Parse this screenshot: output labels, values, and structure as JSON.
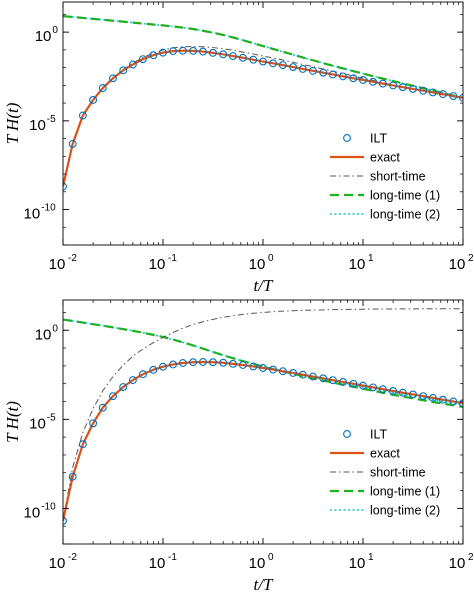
{
  "chart_data": [
    {
      "type": "line",
      "xscale": "log",
      "yscale": "log",
      "xlim": [
        0.01,
        100
      ],
      "ylim": [
        1e-12,
        50
      ],
      "xlabel": "t/T",
      "ylabel": "T H(t)",
      "grid": false,
      "legend_position": "bottom-right",
      "x_ticks": [
        {
          "base": "10",
          "exp": "-2",
          "value": 0.01
        },
        {
          "base": "10",
          "exp": "-1",
          "value": 0.1
        },
        {
          "base": "10",
          "exp": "0",
          "value": 1
        },
        {
          "base": "10",
          "exp": "1",
          "value": 10
        },
        {
          "base": "10",
          "exp": "2",
          "value": 100
        }
      ],
      "y_ticks": [
        {
          "base": "10",
          "exp": "0",
          "value": 1
        },
        {
          "base": "10",
          "exp": "-5",
          "value": 1e-05
        },
        {
          "base": "10",
          "exp": "-10",
          "value": 1e-10
        }
      ],
      "series": [
        {
          "name": "ILT",
          "style": "markers",
          "color": "#0072BD",
          "x": [
            0.01,
            0.0125,
            0.0158,
            0.02,
            0.025,
            0.0316,
            0.04,
            0.05,
            0.063,
            0.08,
            0.1,
            0.126,
            0.158,
            0.2,
            0.251,
            0.316,
            0.4,
            0.5,
            0.63,
            0.8,
            1,
            1.26,
            1.58,
            2,
            2.5,
            3.16,
            4,
            5,
            6.3,
            8,
            10,
            12.6,
            15.8,
            20,
            25,
            31.6,
            40,
            50,
            63,
            80,
            100
          ],
          "y": [
            2e-09,
            5e-07,
            2e-05,
            0.00015,
            0.0007,
            0.0025,
            0.007,
            0.015,
            0.03,
            0.05,
            0.07,
            0.085,
            0.09,
            0.088,
            0.08,
            0.068,
            0.056,
            0.045,
            0.036,
            0.028,
            0.022,
            0.0175,
            0.0138,
            0.0108,
            0.0084,
            0.0066,
            0.0052,
            0.0041,
            0.0032,
            0.0025,
            0.002,
            0.00158,
            0.00125,
            0.00099,
            0.00079,
            0.00063,
            0.0005,
            0.0004,
            0.00032,
            0.00025,
            0.0002
          ]
        },
        {
          "name": "exact",
          "style": "solid",
          "color": "#D95319",
          "x": [
            0.01,
            0.0125,
            0.0158,
            0.02,
            0.025,
            0.0316,
            0.04,
            0.05,
            0.063,
            0.08,
            0.1,
            0.126,
            0.158,
            0.2,
            0.251,
            0.316,
            0.4,
            0.5,
            0.63,
            0.8,
            1,
            1.26,
            1.58,
            2,
            2.5,
            3.16,
            4,
            5,
            6.3,
            8,
            10,
            12.6,
            15.8,
            20,
            25,
            31.6,
            40,
            50,
            63,
            80,
            100
          ],
          "y": [
            2e-09,
            5e-07,
            2e-05,
            0.00015,
            0.0007,
            0.0025,
            0.007,
            0.015,
            0.03,
            0.05,
            0.07,
            0.085,
            0.09,
            0.088,
            0.08,
            0.068,
            0.056,
            0.045,
            0.036,
            0.028,
            0.022,
            0.0175,
            0.0138,
            0.0108,
            0.0084,
            0.0066,
            0.0052,
            0.0041,
            0.0032,
            0.0025,
            0.002,
            0.00158,
            0.00125,
            0.00099,
            0.00079,
            0.00063,
            0.0005,
            0.0004,
            0.00032,
            0.00025,
            0.0002
          ]
        },
        {
          "name": "short-time",
          "style": "dashdot",
          "color": "#555555",
          "x": [
            0.01,
            0.0125,
            0.0158,
            0.02,
            0.025,
            0.0316,
            0.04,
            0.05,
            0.063,
            0.08,
            0.1,
            0.126,
            0.158,
            0.2,
            0.251,
            0.316,
            0.4,
            0.5,
            0.63,
            0.8,
            1,
            1.26,
            1.58,
            2,
            2.5,
            3.16,
            4,
            5,
            6.3,
            8,
            10,
            12.6,
            15.8,
            20,
            25,
            31.6,
            40,
            50,
            63,
            80,
            100
          ],
          "y": [
            2e-09,
            5e-07,
            2e-05,
            0.00016,
            0.00075,
            0.0027,
            0.0078,
            0.018,
            0.037,
            0.065,
            0.1,
            0.13,
            0.15,
            0.155,
            0.15,
            0.135,
            0.115,
            0.095,
            0.075,
            0.058,
            0.045,
            0.035,
            0.027,
            0.02,
            0.015,
            0.0112,
            0.0083,
            0.0062,
            0.0046,
            0.0034,
            0.0025,
            0.0019,
            0.0014,
            0.00105,
            0.0008,
            0.00062,
            0.00048,
            0.00037,
            0.00029,
            0.00023,
            0.00018
          ]
        },
        {
          "name": "long-time (1)",
          "style": "dashed",
          "color": "#1FAF1F",
          "x": [
            0.01,
            0.0126,
            0.0158,
            0.02,
            0.0251,
            0.0316,
            0.0398,
            0.0501,
            0.0631,
            0.0794,
            0.1,
            0.126,
            0.158,
            0.2,
            0.251,
            0.316,
            0.398,
            0.501,
            0.631,
            0.794,
            1,
            1.26,
            1.58,
            2,
            2.51,
            3.16,
            3.98,
            5.01,
            6.31,
            7.94,
            10,
            12.6,
            15.8,
            20,
            25.1,
            31.6,
            39.8,
            50.1,
            63.1,
            79.4,
            100
          ],
          "y": [
            8,
            7.1,
            6.3,
            5.6,
            5,
            4.4,
            3.9,
            3.45,
            3.05,
            2.7,
            2.4,
            2.1,
            1.8,
            1.5,
            1.2,
            0.93,
            0.7,
            0.5,
            0.35,
            0.24,
            0.165,
            0.113,
            0.078,
            0.054,
            0.037,
            0.026,
            0.018,
            0.0127,
            0.009,
            0.0064,
            0.0046,
            0.0033,
            0.0024,
            0.00174,
            0.00128,
            0.00094,
            0.00069,
            0.00051,
            0.00037,
            0.00027,
            0.0002
          ]
        },
        {
          "name": "long-time (2)",
          "style": "dotted",
          "color": "#00CFCF",
          "x": [
            0.01,
            0.0126,
            0.0158,
            0.02,
            0.0251,
            0.0316,
            0.0398,
            0.0501,
            0.0631,
            0.0794,
            0.1,
            0.126,
            0.158,
            0.2,
            0.251,
            0.316,
            0.398,
            0.501,
            0.631,
            0.794,
            1,
            1.26,
            1.58,
            2,
            2.51,
            3.16,
            3.98,
            5.01,
            6.31,
            7.94,
            10,
            12.6,
            15.8,
            20,
            25.1,
            31.6,
            39.8,
            50.1,
            63.1,
            79.4,
            100
          ],
          "y": [
            8,
            7.1,
            6.3,
            5.6,
            5,
            4.4,
            3.9,
            3.45,
            3.05,
            2.7,
            2.4,
            2.1,
            1.8,
            1.5,
            1.2,
            0.93,
            0.7,
            0.5,
            0.35,
            0.24,
            0.165,
            0.113,
            0.078,
            0.054,
            0.037,
            0.026,
            0.018,
            0.0127,
            0.009,
            0.0064,
            0.0046,
            0.0033,
            0.0024,
            0.00174,
            0.00128,
            0.00094,
            0.00069,
            0.00051,
            0.00037,
            0.00027,
            0.0002
          ]
        }
      ]
    },
    {
      "type": "line",
      "xscale": "log",
      "yscale": "log",
      "xlim": [
        0.01,
        100
      ],
      "ylim": [
        1e-12,
        50
      ],
      "xlabel": "t/T",
      "ylabel": "T H(t)",
      "grid": false,
      "legend_position": "bottom-right",
      "x_ticks": [
        {
          "base": "10",
          "exp": "-2",
          "value": 0.01
        },
        {
          "base": "10",
          "exp": "-1",
          "value": 0.1
        },
        {
          "base": "10",
          "exp": "0",
          "value": 1
        },
        {
          "base": "10",
          "exp": "1",
          "value": 10
        },
        {
          "base": "10",
          "exp": "2",
          "value": 100
        }
      ],
      "y_ticks": [
        {
          "base": "10",
          "exp": "0",
          "value": 1
        },
        {
          "base": "10",
          "exp": "-5",
          "value": 1e-05
        },
        {
          "base": "10",
          "exp": "-10",
          "value": 1e-10
        }
      ],
      "series": [
        {
          "name": "ILT",
          "style": "markers",
          "color": "#0072BD",
          "x": [
            0.01,
            0.0125,
            0.0158,
            0.02,
            0.025,
            0.0316,
            0.04,
            0.05,
            0.063,
            0.08,
            0.1,
            0.126,
            0.158,
            0.2,
            0.251,
            0.316,
            0.4,
            0.5,
            0.63,
            0.8,
            1,
            1.26,
            1.58,
            2,
            2.5,
            3.16,
            4,
            5,
            6.3,
            8,
            10,
            12.6,
            15.8,
            20,
            25,
            31.6,
            40,
            50,
            63,
            80,
            100
          ],
          "y": [
            2e-11,
            6e-09,
            4e-07,
            6e-06,
            4.5e-05,
            0.0002,
            0.00065,
            0.0016,
            0.0034,
            0.006,
            0.009,
            0.012,
            0.0145,
            0.016,
            0.0165,
            0.016,
            0.015,
            0.013,
            0.0112,
            0.0093,
            0.0076,
            0.0062,
            0.005,
            0.004,
            0.0032,
            0.0025,
            0.002,
            0.00158,
            0.00125,
            0.00099,
            0.00078,
            0.00062,
            0.00049,
            0.00039,
            0.00031,
            0.00025,
            0.0002,
            0.00016,
            0.000126,
            0.0001,
            8e-05
          ]
        },
        {
          "name": "exact",
          "style": "solid",
          "color": "#D95319",
          "x": [
            0.01,
            0.0125,
            0.0158,
            0.02,
            0.025,
            0.0316,
            0.04,
            0.05,
            0.063,
            0.08,
            0.1,
            0.126,
            0.158,
            0.2,
            0.251,
            0.316,
            0.4,
            0.5,
            0.63,
            0.8,
            1,
            1.26,
            1.58,
            2,
            2.5,
            3.16,
            4,
            5,
            6.3,
            8,
            10,
            12.6,
            15.8,
            20,
            25,
            31.6,
            40,
            50,
            63,
            80,
            100
          ],
          "y": [
            2e-11,
            6e-09,
            4e-07,
            6e-06,
            4.5e-05,
            0.0002,
            0.00065,
            0.0016,
            0.0034,
            0.006,
            0.009,
            0.012,
            0.0145,
            0.016,
            0.0165,
            0.016,
            0.015,
            0.013,
            0.0112,
            0.0093,
            0.0076,
            0.0062,
            0.005,
            0.004,
            0.0032,
            0.0025,
            0.002,
            0.00158,
            0.00125,
            0.00099,
            0.00078,
            0.00062,
            0.00049,
            0.00039,
            0.00031,
            0.00025,
            0.0002,
            0.00016,
            0.000126,
            0.0001,
            8e-05
          ]
        },
        {
          "name": "short-time",
          "style": "dashdot",
          "color": "#555555",
          "x": [
            0.01,
            0.0125,
            0.0158,
            0.02,
            0.025,
            0.0316,
            0.04,
            0.05,
            0.063,
            0.08,
            0.1,
            0.126,
            0.158,
            0.2,
            0.251,
            0.316,
            0.4,
            0.5,
            0.63,
            0.8,
            1,
            1.26,
            1.58,
            2,
            2.5,
            3.16,
            4,
            5,
            6.3,
            8,
            10,
            12.6,
            15.8,
            20,
            25,
            31.6,
            40,
            50,
            63,
            80,
            100
          ],
          "y": [
            2e-11,
            2e-08,
            1.8e-06,
            4e-05,
            0.0004,
            0.0025,
            0.011,
            0.035,
            0.09,
            0.2,
            0.4,
            0.75,
            1.3,
            2.1,
            3,
            4.1,
            5.3,
            6.5,
            7.8,
            9,
            10,
            11,
            11.8,
            12.5,
            13.1,
            13.6,
            14,
            14.4,
            14.7,
            15,
            15.2,
            15.4,
            15.6,
            15.7,
            15.8,
            15.9,
            16,
            16.1,
            16.1,
            16.2,
            16.2
          ]
        },
        {
          "name": "long-time (1)",
          "style": "dashed",
          "color": "#1FAF1F",
          "x": [
            0.01,
            0.0126,
            0.0158,
            0.02,
            0.0251,
            0.0316,
            0.0398,
            0.0501,
            0.0631,
            0.0794,
            0.1,
            0.126,
            0.158,
            0.2,
            0.251,
            0.316,
            0.398,
            0.501,
            0.631,
            0.794,
            1,
            1.26,
            1.58,
            2,
            2.51,
            3.16,
            3.98,
            5.01,
            6.31,
            7.94,
            10,
            12.6,
            15.8,
            20,
            25.1,
            31.6,
            39.8,
            50.1,
            63.1,
            79.4,
            100
          ],
          "y": [
            4,
            3.3,
            2.7,
            2.2,
            1.8,
            1.45,
            1.17,
            0.93,
            0.73,
            0.56,
            0.42,
            0.3,
            0.21,
            0.14,
            0.093,
            0.061,
            0.04,
            0.027,
            0.0185,
            0.013,
            0.0092,
            0.0066,
            0.0048,
            0.0036,
            0.0027,
            0.002,
            0.0015,
            0.00115,
            0.00088,
            0.00068,
            0.00052,
            0.0004,
            0.00031,
            0.00024,
            0.00019,
            0.00015,
            0.000118,
            9.4e-05,
            7.6e-05,
            6.2e-05,
            5e-05
          ]
        },
        {
          "name": "long-time (2)",
          "style": "dotted",
          "color": "#00CFCF",
          "x": [
            0.01,
            0.0126,
            0.0158,
            0.02,
            0.0251,
            0.0316,
            0.0398,
            0.0501,
            0.0631,
            0.0794,
            0.1,
            0.126,
            0.158,
            0.2,
            0.251,
            0.316,
            0.398,
            0.501,
            0.631,
            0.794,
            1,
            1.26,
            1.58,
            2,
            2.51,
            3.16,
            3.98,
            5.01,
            6.31,
            7.94,
            10,
            12.6,
            15.8,
            20,
            25.1,
            31.6,
            39.8,
            50.1,
            63.1,
            79.4,
            100
          ],
          "y": [
            4,
            3.3,
            2.7,
            2.2,
            1.8,
            1.45,
            1.17,
            0.93,
            0.73,
            0.56,
            0.42,
            0.3,
            0.21,
            0.14,
            0.093,
            0.061,
            0.04,
            0.027,
            0.0185,
            0.013,
            0.0092,
            0.0068,
            0.0051,
            0.0039,
            0.003,
            0.0023,
            0.0018,
            0.0014,
            0.00108,
            0.00084,
            0.00066,
            0.00052,
            0.00041,
            0.00032,
            0.00025,
            0.0002,
            0.00016,
            0.000128,
            0.000102,
            8.2e-05,
            6.6e-05
          ]
        }
      ]
    }
  ]
}
